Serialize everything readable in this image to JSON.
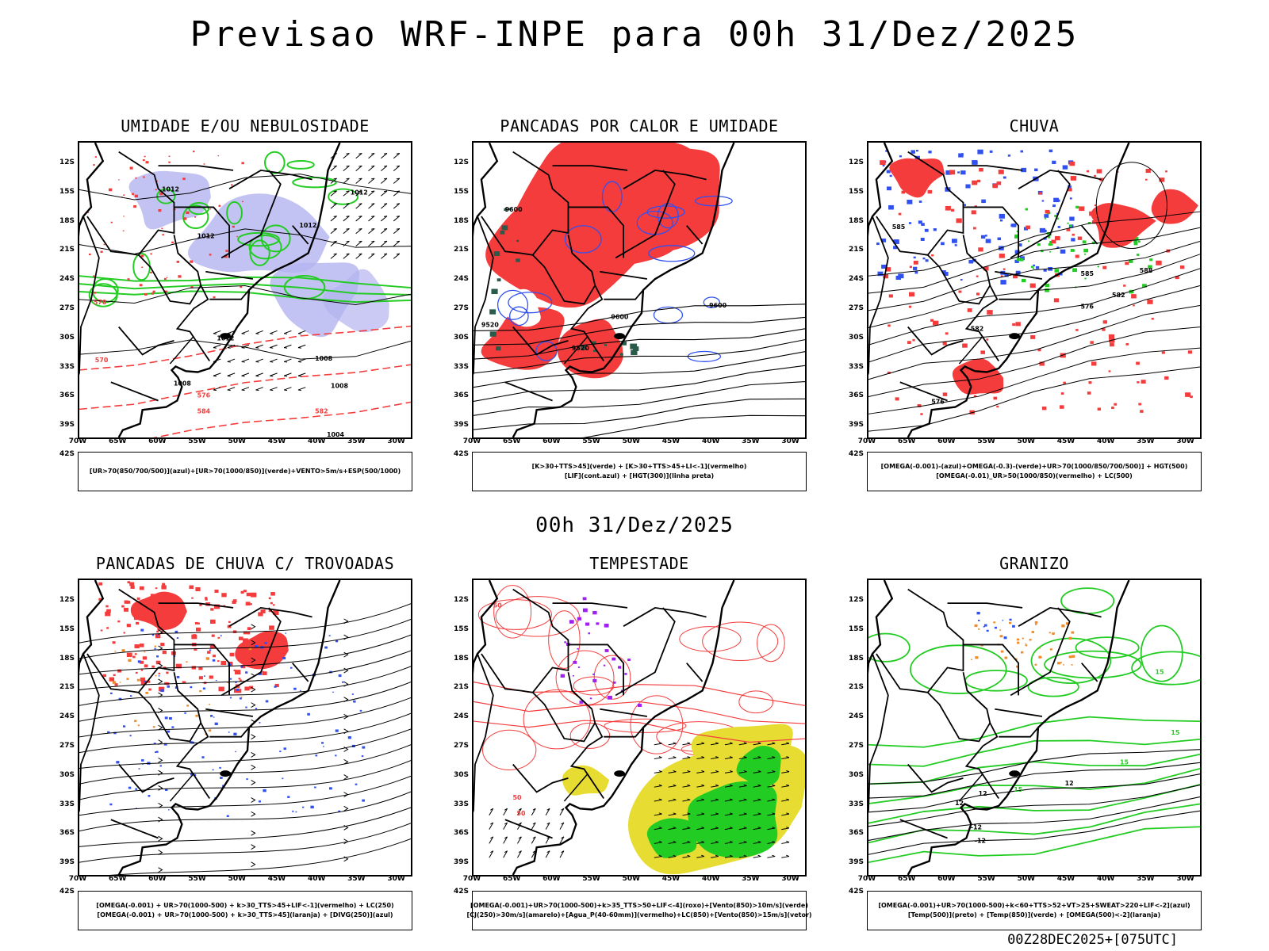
{
  "title": "Previsao WRF-INPE  para 00h 31/Dez/2025",
  "subtitle": "00h 31/Dez/2025",
  "footer": "00Z28DEC2025+[075UTC]",
  "colors": {
    "red": "#f43c3c",
    "blue": "#3050f0",
    "green": "#22cc22",
    "lavender": "#b4b4f0",
    "purple": "#a020f0",
    "yellow": "#e6dc32",
    "orange": "#f08c28",
    "dark-green": "#2a5a4a",
    "black": "#000000"
  },
  "chart_data": [
    {
      "type": "contour-map",
      "title": "UMIDADE E/OU NEBULOSIDADE",
      "x_ticks": [
        "70W",
        "65W",
        "60W",
        "55W",
        "50W",
        "45W",
        "40W",
        "35W",
        "30W"
      ],
      "y_ticks": [
        "12S",
        "15S",
        "18S",
        "21S",
        "24S",
        "27S",
        "30S",
        "33S",
        "36S",
        "39S",
        "42S"
      ],
      "xlim": [
        -70,
        -28
      ],
      "ylim": [
        -42,
        -10
      ],
      "contour_labels": [
        "1012",
        "1012",
        "1012",
        "1012",
        "1012",
        "1008",
        "1008",
        "1008",
        "570",
        "570",
        "576",
        "582",
        "584",
        "1004"
      ],
      "legend": [
        "[UR>70(850/700/500)](azul)+[UR>70(1000/850)](verde)+VENTO>5m/s+ESP(500/1000)"
      ]
    },
    {
      "type": "contour-map",
      "title": "PANCADAS POR CALOR E UMIDADE",
      "x_ticks": [
        "70W",
        "65W",
        "60W",
        "55W",
        "50W",
        "45W",
        "40W",
        "35W",
        "30W"
      ],
      "y_ticks": [
        "12S",
        "15S",
        "18S",
        "21S",
        "24S",
        "27S",
        "30S",
        "33S",
        "36S",
        "39S",
        "42S"
      ],
      "xlim": [
        -70,
        -28
      ],
      "ylim": [
        -42,
        -10
      ],
      "contour_labels": [
        "9600",
        "9600",
        "9600",
        "9520",
        "9520"
      ],
      "legend": [
        "[K>30+TTS>45](verde) + [K>30+TTS>45+LI<-1](vermelho)",
        "[LIF](cont.azul) + [HGT(300)](linha preta)"
      ]
    },
    {
      "type": "contour-map",
      "title": "CHUVA",
      "x_ticks": [
        "70W",
        "65W",
        "60W",
        "55W",
        "50W",
        "45W",
        "40W",
        "35W",
        "30W"
      ],
      "y_ticks": [
        "12S",
        "15S",
        "18S",
        "21S",
        "24S",
        "27S",
        "30S",
        "33S",
        "36S",
        "39S",
        "42S"
      ],
      "xlim": [
        -70,
        -28
      ],
      "ylim": [
        -42,
        -10
      ],
      "contour_labels": [
        "585",
        "585",
        "582",
        "582",
        "576",
        "576",
        "588"
      ],
      "legend": [
        "[OMEGA(-0.001)-(azul)+OMEGA(-0.3)-(verde)+UR>70(1000/850/700/500)] + HGT(500)",
        "[OMEGA(-0.01)_UR>50(1000/850)(vermelho) + LC(500)"
      ]
    },
    {
      "type": "contour-map",
      "title": "PANCADAS DE CHUVA C/ TROVOADAS",
      "x_ticks": [
        "70W",
        "65W",
        "60W",
        "55W",
        "50W",
        "45W",
        "40W",
        "35W",
        "30W"
      ],
      "y_ticks": [
        "12S",
        "15S",
        "18S",
        "21S",
        "24S",
        "27S",
        "30S",
        "33S",
        "36S",
        "39S",
        "42S"
      ],
      "xlim": [
        -70,
        -28
      ],
      "ylim": [
        -42,
        -10
      ],
      "contour_labels": [],
      "legend": [
        "[OMEGA(-0.001) + UR>70(1000-500) + k>30_TTS>45+LIF<-1](vermelho) + LC(250)",
        "[OMEGA(-0.001) + UR>70(1000-500) + k>30_TTS>45](laranja) + [DIVG(250)](azul)"
      ]
    },
    {
      "type": "contour-map",
      "title": "TEMPESTADE",
      "x_ticks": [
        "70W",
        "65W",
        "60W",
        "55W",
        "50W",
        "45W",
        "40W",
        "35W",
        "30W"
      ],
      "y_ticks": [
        "12S",
        "15S",
        "18S",
        "21S",
        "24S",
        "27S",
        "30S",
        "33S",
        "36S",
        "39S",
        "42S"
      ],
      "xlim": [
        -70,
        -28
      ],
      "ylim": [
        -42,
        -10
      ],
      "contour_labels": [
        "50",
        "50",
        "50"
      ],
      "legend": [
        "[OMEGA(-0.001)+UR>70(1000-500)+k>35_TTS>50+LIF<-4](roxo)+[Vento(850)>10m/s](verde)",
        "[CJ(250)>30m/s](amarelo)+[Agua_P(40-60mm)](vermelho)+LC(850)+[Vento(850)>15m/s](vetor)"
      ]
    },
    {
      "type": "contour-map",
      "title": "GRANIZO",
      "x_ticks": [
        "70W",
        "65W",
        "60W",
        "55W",
        "50W",
        "45W",
        "40W",
        "35W",
        "30W"
      ],
      "y_ticks": [
        "12S",
        "15S",
        "18S",
        "21S",
        "24S",
        "27S",
        "30S",
        "33S",
        "36S",
        "39S",
        "42S"
      ],
      "xlim": [
        -70,
        -28
      ],
      "ylim": [
        -42,
        -10
      ],
      "contour_labels": [
        "15",
        "15",
        "15",
        "15",
        "12",
        "12",
        "12",
        "-12",
        "-12"
      ],
      "legend": [
        "[OMEGA(-0.001)+UR>70(1000-500)+k<60+TTS>52+VT>25+SWEAT>220+LIF<-2](azul)",
        "[Temp(500)](preto) + [Temp(850)](verde) + [OMEGA(500)<-2](laranja)"
      ]
    }
  ]
}
